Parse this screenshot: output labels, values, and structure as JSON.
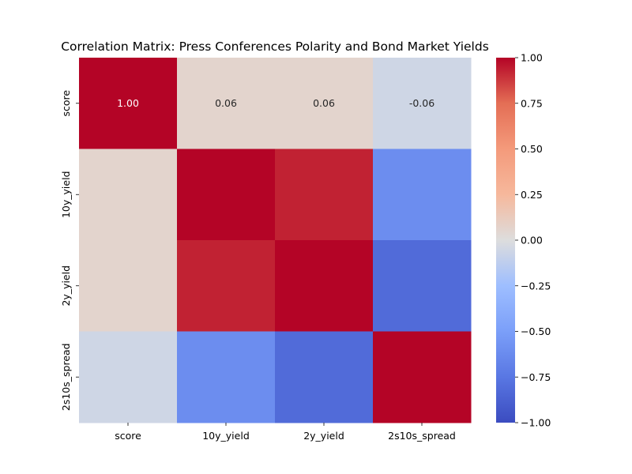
{
  "chart_data": {
    "type": "heatmap",
    "title": "Correlation Matrix: Press Conferences Polarity and Bond Market Yields",
    "row_labels": [
      "score",
      "10y_yield",
      "2y_yield",
      "2s10s_spread"
    ],
    "col_labels": [
      "score",
      "10y_yield",
      "2y_yield",
      "2s10s_spread"
    ],
    "values": [
      [
        1.0,
        0.06,
        0.06,
        -0.06
      ],
      [
        0.06,
        1.0,
        0.93,
        -0.61
      ],
      [
        0.06,
        0.93,
        1.0,
        -0.82
      ],
      [
        -0.06,
        -0.61,
        -0.82,
        1.0
      ]
    ],
    "annotations_visible_rows": [
      0
    ],
    "colormap": "coolwarm",
    "vmin": -1.0,
    "vmax": 1.0,
    "colorbar_ticks": [
      "1.00",
      "0.75",
      "0.50",
      "0.25",
      "0.00",
      "−0.25",
      "−0.50",
      "−0.75",
      "−1.00"
    ]
  }
}
